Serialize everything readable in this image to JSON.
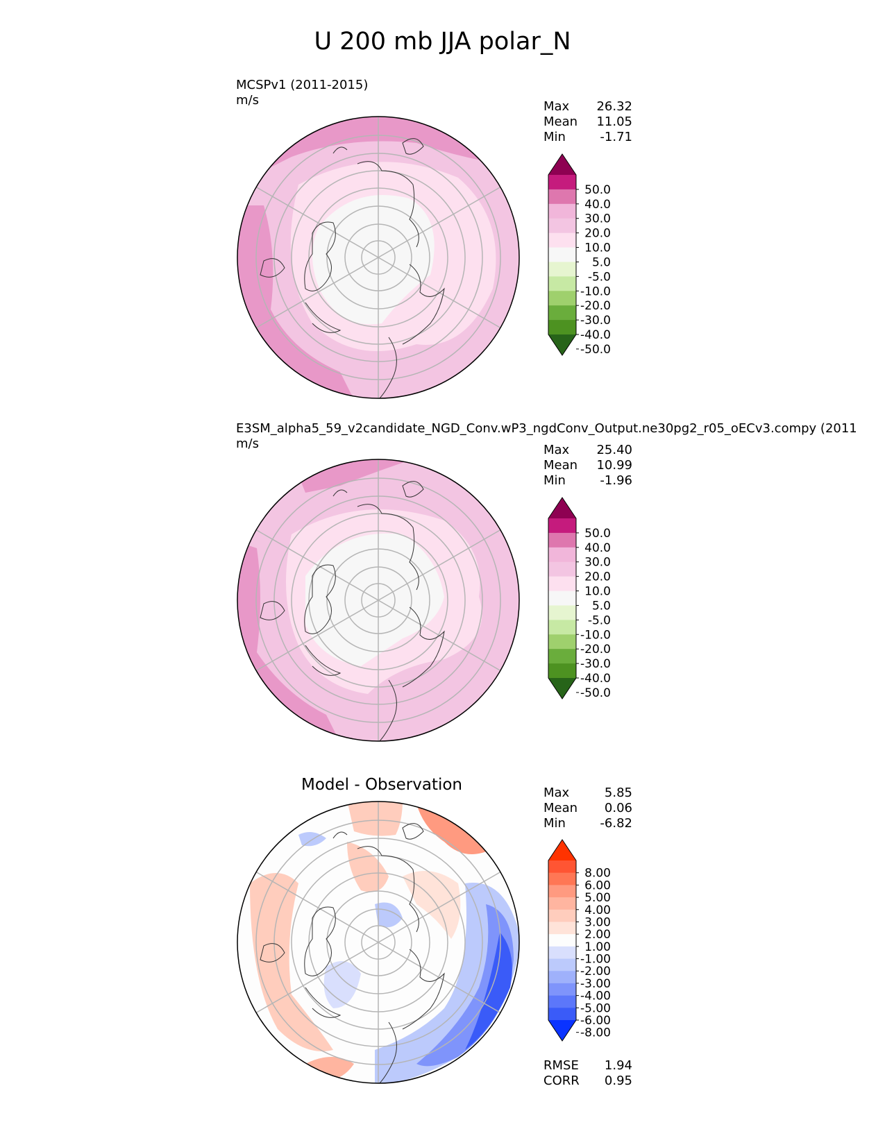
{
  "figure": {
    "title": "U 200 mb JJA polar_N"
  },
  "panels": [
    {
      "id": "test",
      "name": "MCSPv1 (2011-2015)",
      "units": "m/s",
      "stats": [
        {
          "label": "Max",
          "value": "26.32"
        },
        {
          "label": "Mean",
          "value": "11.05"
        },
        {
          "label": "Min",
          "value": "-1.71"
        }
      ],
      "colorbar": {
        "ticks": [
          "50.0",
          "40.0",
          "30.0",
          "20.0",
          "10.0",
          "5.0",
          "-5.0",
          "-10.0",
          "-20.0",
          "-30.0",
          "-40.0",
          "-50.0"
        ],
        "colors": [
          "#8e0152",
          "#c51b7d",
          "#de77ae",
          "#f1b6da",
          "#f3c5e2",
          "#fde0ef",
          "#f7f7f7",
          "#e6f5d0",
          "#c7e9a4",
          "#9fd06d",
          "#6aad3c",
          "#4d9221",
          "#276419"
        ]
      }
    },
    {
      "id": "reference",
      "name": "E3SM_alpha5_59_v2candidate_NGD_Conv.wP3_ngdConv_Output.ne30pg2_r05_oECv3.compy (2011",
      "units": "m/s",
      "stats": [
        {
          "label": "Max",
          "value": "25.40"
        },
        {
          "label": "Mean",
          "value": "10.99"
        },
        {
          "label": "Min",
          "value": "-1.96"
        }
      ],
      "colorbar": {
        "ticks": [
          "50.0",
          "40.0",
          "30.0",
          "20.0",
          "10.0",
          "5.0",
          "-5.0",
          "-10.0",
          "-20.0",
          "-30.0",
          "-40.0",
          "-50.0"
        ],
        "colors": [
          "#8e0152",
          "#c51b7d",
          "#de77ae",
          "#f1b6da",
          "#f3c5e2",
          "#fde0ef",
          "#f7f7f7",
          "#e6f5d0",
          "#c7e9a4",
          "#9fd06d",
          "#6aad3c",
          "#4d9221",
          "#276419"
        ]
      }
    },
    {
      "id": "diff",
      "name": "Model - Observation",
      "stats": [
        {
          "label": "Max",
          "value": "5.85"
        },
        {
          "label": "Mean",
          "value": "0.06"
        },
        {
          "label": "Min",
          "value": "-6.82"
        }
      ],
      "metrics": [
        {
          "label": "RMSE",
          "value": "1.94"
        },
        {
          "label": "CORR",
          "value": "0.95"
        }
      ],
      "colorbar": {
        "ticks": [
          "8.00",
          "6.00",
          "5.00",
          "4.00",
          "3.00",
          "2.00",
          "1.00",
          "-1.00",
          "-2.00",
          "-3.00",
          "-4.00",
          "-5.00",
          "-6.00",
          "-8.00"
        ],
        "colors": [
          "#ff3300",
          "#ff5533",
          "#ff7755",
          "#ff9a80",
          "#ffb5a0",
          "#ffcdbd",
          "#ffe3d9",
          "#fdfdfd",
          "#d9dffd",
          "#bccafc",
          "#9fb1fb",
          "#7f94fb",
          "#5c77fa",
          "#3a5bf8",
          "#0a33ff"
        ]
      }
    }
  ]
}
